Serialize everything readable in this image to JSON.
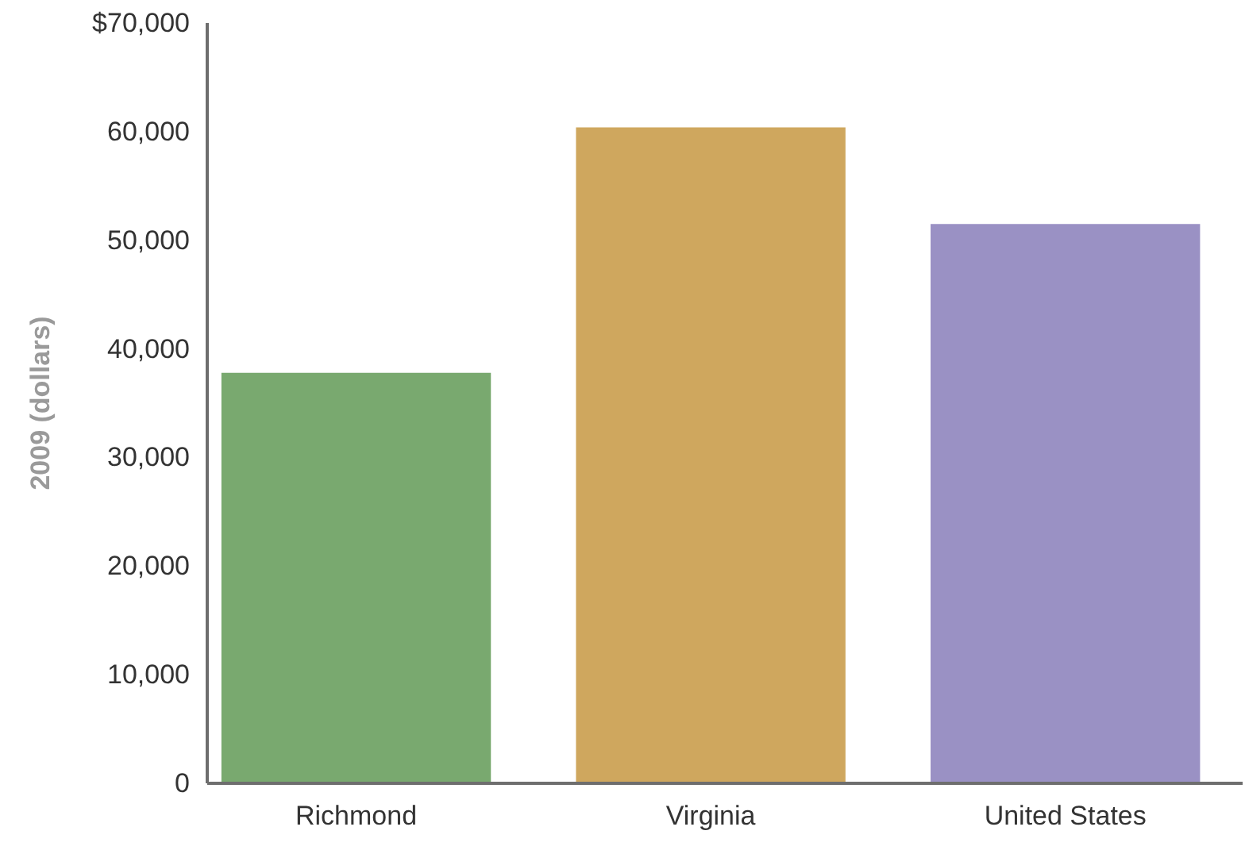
{
  "chart_data": {
    "type": "bar",
    "ylabel": "2009 (dollars)",
    "categories": [
      "Richmond",
      "Virginia",
      "United States"
    ],
    "values": [
      37800,
      60400,
      51500
    ],
    "colors": [
      "#79a96f",
      "#cfa75e",
      "#9a91c4"
    ],
    "ylim": [
      0,
      70000
    ],
    "yticks": [
      0,
      {
        "value": 10000,
        "label": "10,000"
      },
      {
        "value": 20000,
        "label": "20,000"
      },
      {
        "value": 30000,
        "label": "30,000"
      },
      {
        "value": 40000,
        "label": "40,000"
      },
      {
        "value": 50000,
        "label": "50,000"
      },
      {
        "value": 60000,
        "label": "60,000"
      },
      {
        "value": 70000,
        "label": "$70,000"
      }
    ],
    "grid": false
  }
}
